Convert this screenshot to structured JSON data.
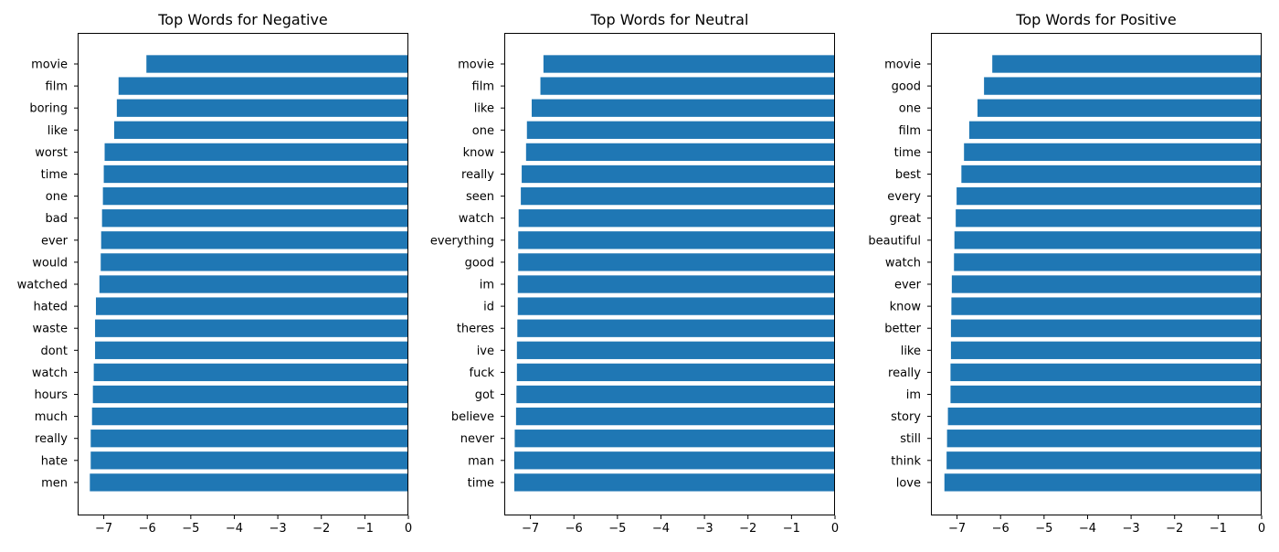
{
  "chart_data": [
    {
      "type": "bar",
      "orientation": "horizontal",
      "title": "Top Words for Negative",
      "xlabel": "",
      "ylabel": "",
      "xlim": [
        -7.6,
        0
      ],
      "xticks": [
        -7,
        -6,
        -5,
        -4,
        -3,
        -2,
        -1,
        0
      ],
      "xtick_labels": [
        "−7",
        "−6",
        "−5",
        "−4",
        "−3",
        "−2",
        "−1",
        "0"
      ],
      "color": "#1f77b4",
      "categories": [
        "movie",
        "film",
        "boring",
        "like",
        "worst",
        "time",
        "one",
        "bad",
        "ever",
        "would",
        "watched",
        "hated",
        "waste",
        "dont",
        "watch",
        "hours",
        "much",
        "really",
        "hate",
        "men"
      ],
      "values": [
        -6.02,
        -6.66,
        -6.7,
        -6.76,
        -6.98,
        -7.0,
        -7.02,
        -7.04,
        -7.06,
        -7.07,
        -7.1,
        -7.18,
        -7.2,
        -7.2,
        -7.23,
        -7.25,
        -7.27,
        -7.3,
        -7.3,
        -7.32
      ]
    },
    {
      "type": "bar",
      "orientation": "horizontal",
      "title": "Top Words for Neutral",
      "xlabel": "",
      "ylabel": "",
      "xlim": [
        -7.6,
        0
      ],
      "xticks": [
        -7,
        -6,
        -5,
        -4,
        -3,
        -2,
        -1,
        0
      ],
      "xtick_labels": [
        "−7",
        "−6",
        "−5",
        "−4",
        "−3",
        "−2",
        "−1",
        "0"
      ],
      "color": "#1f77b4",
      "categories": [
        "movie",
        "film",
        "like",
        "one",
        "know",
        "really",
        "seen",
        "watch",
        "everything",
        "good",
        "im",
        "id",
        "theres",
        "ive",
        "fuck",
        "got",
        "believe",
        "never",
        "man",
        "time"
      ],
      "values": [
        -6.7,
        -6.77,
        -6.97,
        -7.08,
        -7.1,
        -7.2,
        -7.22,
        -7.27,
        -7.28,
        -7.28,
        -7.29,
        -7.29,
        -7.3,
        -7.31,
        -7.31,
        -7.32,
        -7.33,
        -7.36,
        -7.37,
        -7.37
      ]
    },
    {
      "type": "bar",
      "orientation": "horizontal",
      "title": "Top Words for Positive",
      "xlabel": "",
      "ylabel": "",
      "xlim": [
        -7.6,
        0
      ],
      "xticks": [
        -7,
        -6,
        -5,
        -4,
        -3,
        -2,
        -1,
        0
      ],
      "xtick_labels": [
        "−7",
        "−6",
        "−5",
        "−4",
        "−3",
        "−2",
        "−1",
        "0"
      ],
      "color": "#1f77b4",
      "categories": [
        "movie",
        "good",
        "one",
        "film",
        "time",
        "best",
        "every",
        "great",
        "beautiful",
        "watch",
        "ever",
        "know",
        "better",
        "like",
        "really",
        "im",
        "story",
        "still",
        "think",
        "love"
      ],
      "values": [
        -6.19,
        -6.38,
        -6.53,
        -6.72,
        -6.84,
        -6.9,
        -7.01,
        -7.03,
        -7.06,
        -7.07,
        -7.12,
        -7.13,
        -7.14,
        -7.14,
        -7.15,
        -7.15,
        -7.21,
        -7.23,
        -7.24,
        -7.29
      ]
    }
  ]
}
